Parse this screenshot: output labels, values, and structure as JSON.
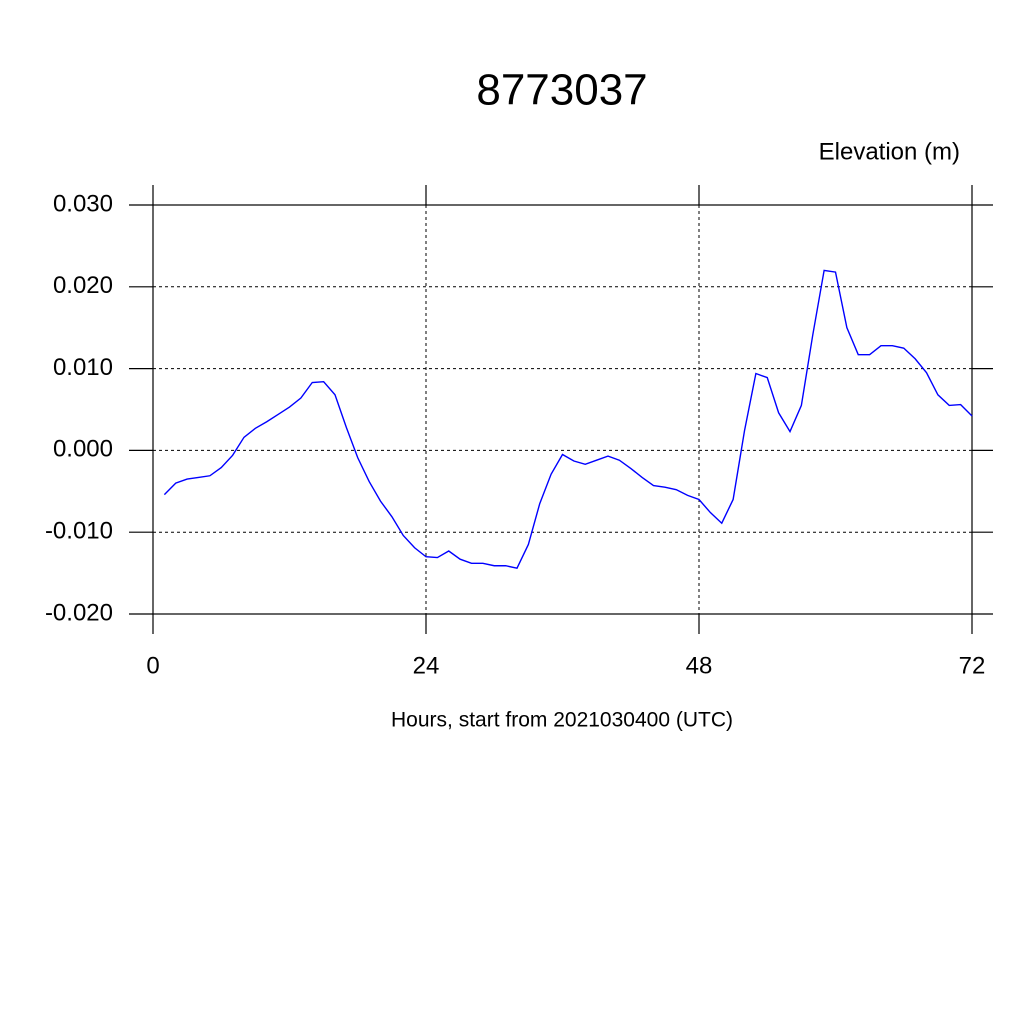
{
  "chart_data": {
    "type": "line",
    "title": "8773037",
    "subtitle": "Elevation (m)",
    "x_label": "Hours, start from 2021030400 (UTC)",
    "x": [
      1,
      2,
      3,
      4,
      5,
      6,
      7,
      8,
      9,
      10,
      11,
      12,
      13,
      14,
      15,
      16,
      17,
      18,
      19,
      20,
      21,
      22,
      23,
      24,
      25,
      26,
      27,
      28,
      29,
      30,
      31,
      32,
      33,
      34,
      35,
      36,
      37,
      38,
      39,
      40,
      41,
      42,
      43,
      44,
      45,
      46,
      47,
      48,
      49,
      50,
      51,
      52,
      53,
      54,
      55,
      56,
      57,
      58,
      59,
      60,
      61,
      62,
      63,
      64,
      65,
      66,
      67,
      68,
      69,
      70,
      71,
      72
    ],
    "series": [
      {
        "name": "Elevation",
        "color": "#0000ff",
        "values": [
          -0.0054,
          -0.004,
          -0.0035,
          -0.0033,
          -0.0031,
          -0.0021,
          -0.0006,
          0.0016,
          0.0027,
          0.0035,
          0.0044,
          0.0053,
          0.0064,
          0.0083,
          0.0084,
          0.0068,
          0.0028,
          -0.0009,
          -0.0038,
          -0.0062,
          -0.0081,
          -0.0104,
          -0.0119,
          -0.013,
          -0.0131,
          -0.0123,
          -0.0133,
          -0.0138,
          -0.0138,
          -0.0141,
          -0.0141,
          -0.0144,
          -0.0115,
          -0.0065,
          -0.0029,
          -0.0005,
          -0.0013,
          -0.0017,
          -0.0012,
          -0.0007,
          -0.0012,
          -0.0022,
          -0.0033,
          -0.0043,
          -0.0045,
          -0.0048,
          -0.0055,
          -0.006,
          -0.0076,
          -0.0089,
          -0.006,
          0.0024,
          0.0094,
          0.0089,
          0.0046,
          0.0023,
          0.0055,
          0.0141,
          0.022,
          0.0218,
          0.015,
          0.0117,
          0.0117,
          0.0128,
          0.0128,
          0.0125,
          0.0112,
          0.0095,
          0.0068,
          0.0055,
          0.0056,
          0.0042
        ]
      }
    ],
    "xlim": [
      0,
      72
    ],
    "xticks": [
      0,
      24,
      48,
      72
    ],
    "ylim": [
      -0.02,
      0.03
    ],
    "yticks": [
      {
        "value": -0.02,
        "label": "-0.020"
      },
      {
        "value": -0.01,
        "label": "-0.010"
      },
      {
        "value": 0,
        "label": "0.000"
      },
      {
        "value": 0.01,
        "label": "0.010"
      },
      {
        "value": 0.02,
        "label": "0.020"
      },
      {
        "value": 0.03,
        "label": "0.030"
      }
    ],
    "grid": true
  }
}
